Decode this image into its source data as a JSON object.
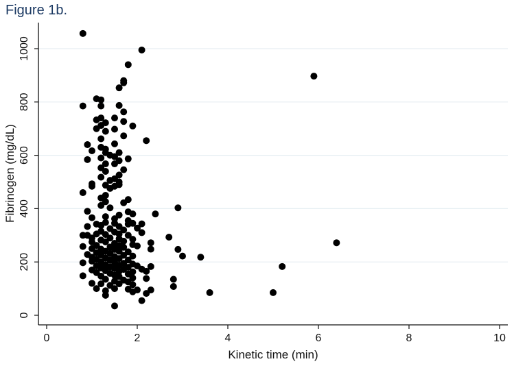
{
  "figure_label": "Figure 1b.",
  "chart_data": {
    "type": "scatter",
    "title": "",
    "xlabel": "Kinetic time (min)",
    "ylabel": "Fibrinogen (mg/dL)",
    "xlim": [
      0,
      10
    ],
    "ylim": [
      0,
      1080
    ],
    "xticks": [
      0,
      2,
      4,
      6,
      8,
      10
    ],
    "yticks": [
      0,
      200,
      400,
      600,
      800,
      1000
    ],
    "grid": "horizontal",
    "marker_color": "#000000",
    "grid_color": "#e6eef2",
    "points": [
      [
        0.8,
        1057
      ],
      [
        2.1,
        995
      ],
      [
        1.8,
        940
      ],
      [
        5.9,
        897
      ],
      [
        1.7,
        880
      ],
      [
        1.7,
        872
      ],
      [
        1.6,
        853
      ],
      [
        1.1,
        812
      ],
      [
        1.2,
        808
      ],
      [
        0.8,
        785
      ],
      [
        1.2,
        785
      ],
      [
        1.6,
        787
      ],
      [
        1.7,
        763
      ],
      [
        1.2,
        740
      ],
      [
        1.5,
        740
      ],
      [
        1.1,
        733
      ],
      [
        1.3,
        722
      ],
      [
        1.7,
        727
      ],
      [
        1.2,
        712
      ],
      [
        1.9,
        710
      ],
      [
        1.1,
        700
      ],
      [
        1.5,
        698
      ],
      [
        1.3,
        690
      ],
      [
        1.7,
        673
      ],
      [
        1.2,
        662
      ],
      [
        2.2,
        655
      ],
      [
        0.9,
        640
      ],
      [
        1.5,
        643
      ],
      [
        1.2,
        630
      ],
      [
        1.0,
        617
      ],
      [
        1.3,
        623
      ],
      [
        1.3,
        610
      ],
      [
        1.6,
        610
      ],
      [
        1.4,
        600
      ],
      [
        1.2,
        590
      ],
      [
        1.5,
        595
      ],
      [
        0.9,
        584
      ],
      [
        1.6,
        580
      ],
      [
        1.8,
        587
      ],
      [
        1.3,
        568
      ],
      [
        1.5,
        568
      ],
      [
        1.2,
        553
      ],
      [
        1.7,
        546
      ],
      [
        1.3,
        540
      ],
      [
        1.6,
        526
      ],
      [
        1.2,
        518
      ],
      [
        1.5,
        512
      ],
      [
        1.4,
        506
      ],
      [
        1.6,
        500
      ],
      [
        1.0,
        493
      ],
      [
        1.3,
        488
      ],
      [
        1.6,
        490
      ],
      [
        1.0,
        484
      ],
      [
        1.5,
        484
      ],
      [
        1.4,
        476
      ],
      [
        0.8,
        460
      ],
      [
        1.3,
        450
      ],
      [
        1.2,
        440
      ],
      [
        1.8,
        434
      ],
      [
        1.3,
        426
      ],
      [
        1.7,
        422
      ],
      [
        1.2,
        412
      ],
      [
        1.4,
        403
      ],
      [
        2.9,
        403
      ],
      [
        0.9,
        390
      ],
      [
        1.8,
        388
      ],
      [
        1.9,
        380
      ],
      [
        2.4,
        380
      ],
      [
        1.6,
        376
      ],
      [
        1.3,
        370
      ],
      [
        1.0,
        366
      ],
      [
        1.5,
        362
      ],
      [
        1.8,
        355
      ],
      [
        1.3,
        348
      ],
      [
        1.1,
        342
      ],
      [
        1.5,
        345
      ],
      [
        1.8,
        342
      ],
      [
        1.9,
        345
      ],
      [
        2.1,
        343
      ],
      [
        1.2,
        337
      ],
      [
        0.9,
        333
      ],
      [
        1.6,
        333
      ],
      [
        2.0,
        327
      ],
      [
        1.4,
        325
      ],
      [
        1.7,
        320
      ],
      [
        1.2,
        315
      ],
      [
        1.5,
        312
      ],
      [
        2.1,
        310
      ],
      [
        0.8,
        300
      ],
      [
        0.9,
        300
      ],
      [
        1.1,
        305
      ],
      [
        1.3,
        303
      ],
      [
        1.6,
        305
      ],
      [
        1.8,
        300
      ],
      [
        2.7,
        293
      ],
      [
        1.0,
        290
      ],
      [
        1.4,
        290
      ],
      [
        1.6,
        287
      ],
      [
        1.9,
        285
      ],
      [
        1.2,
        282
      ],
      [
        1.7,
        278
      ],
      [
        1.0,
        275
      ],
      [
        1.3,
        275
      ],
      [
        2.3,
        272
      ],
      [
        6.4,
        272
      ],
      [
        1.5,
        270
      ],
      [
        1.9,
        265
      ],
      [
        1.1,
        262
      ],
      [
        1.6,
        262
      ],
      [
        0.8,
        258
      ],
      [
        1.4,
        256
      ],
      [
        1.7,
        255
      ],
      [
        2.0,
        260
      ],
      [
        1.0,
        250
      ],
      [
        1.2,
        248
      ],
      [
        1.5,
        247
      ],
      [
        2.3,
        248
      ],
      [
        2.9,
        247
      ],
      [
        1.3,
        240
      ],
      [
        1.6,
        240
      ],
      [
        1.8,
        238
      ],
      [
        1.1,
        235
      ],
      [
        1.4,
        232
      ],
      [
        0.9,
        228
      ],
      [
        1.2,
        226
      ],
      [
        1.7,
        225
      ],
      [
        1.5,
        220
      ],
      [
        1.9,
        222
      ],
      [
        3.0,
        222
      ],
      [
        1.0,
        218
      ],
      [
        1.3,
        215
      ],
      [
        1.6,
        213
      ],
      [
        3.4,
        218
      ],
      [
        1.1,
        210
      ],
      [
        1.4,
        207
      ],
      [
        1.8,
        207
      ],
      [
        1.0,
        203
      ],
      [
        1.2,
        200
      ],
      [
        1.5,
        198
      ],
      [
        0.8,
        197
      ],
      [
        1.7,
        195
      ],
      [
        1.9,
        192
      ],
      [
        1.3,
        190
      ],
      [
        1.6,
        188
      ],
      [
        2.0,
        185
      ],
      [
        1.1,
        185
      ],
      [
        1.4,
        182
      ],
      [
        2.3,
        183
      ],
      [
        5.2,
        183
      ],
      [
        1.8,
        180
      ],
      [
        1.2,
        177
      ],
      [
        1.5,
        175
      ],
      [
        1.7,
        172
      ],
      [
        2.1,
        173
      ],
      [
        1.0,
        170
      ],
      [
        1.3,
        167
      ],
      [
        1.6,
        165
      ],
      [
        1.9,
        163
      ],
      [
        2.2,
        165
      ],
      [
        1.1,
        160
      ],
      [
        1.4,
        157
      ],
      [
        1.8,
        155
      ],
      [
        1.5,
        150
      ],
      [
        0.8,
        148
      ],
      [
        1.2,
        147
      ],
      [
        1.6,
        145
      ],
      [
        1.9,
        140
      ],
      [
        2.2,
        138
      ],
      [
        1.3,
        135
      ],
      [
        1.7,
        132
      ],
      [
        2.8,
        135
      ],
      [
        1.5,
        128
      ],
      [
        1.8,
        125
      ],
      [
        1.0,
        120
      ],
      [
        1.2,
        118
      ],
      [
        1.6,
        118
      ],
      [
        1.9,
        115
      ],
      [
        1.4,
        112
      ],
      [
        2.8,
        108
      ],
      [
        1.1,
        100
      ],
      [
        1.5,
        100
      ],
      [
        1.8,
        98
      ],
      [
        2.3,
        95
      ],
      [
        2.0,
        95
      ],
      [
        1.3,
        92
      ],
      [
        1.9,
        88
      ],
      [
        2.2,
        82
      ],
      [
        3.6,
        85
      ],
      [
        5.0,
        85
      ],
      [
        1.3,
        75
      ],
      [
        2.1,
        55
      ],
      [
        1.5,
        35
      ]
    ]
  }
}
